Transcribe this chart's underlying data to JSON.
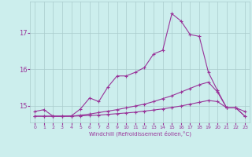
{
  "xlabel": "Windchill (Refroidissement éolien,°C)",
  "x": [
    0,
    1,
    2,
    3,
    4,
    5,
    6,
    7,
    8,
    9,
    10,
    11,
    12,
    13,
    14,
    15,
    16,
    17,
    18,
    19,
    20,
    21,
    22,
    23
  ],
  "line1": [
    14.85,
    14.9,
    14.72,
    14.72,
    14.73,
    14.92,
    15.22,
    15.12,
    15.52,
    15.82,
    15.82,
    15.92,
    16.05,
    16.42,
    16.52,
    17.52,
    17.32,
    16.95,
    16.9,
    15.92,
    15.42,
    14.95,
    14.95,
    14.85
  ],
  "line2": [
    14.72,
    14.72,
    14.72,
    14.72,
    14.72,
    14.75,
    14.78,
    14.82,
    14.86,
    14.9,
    14.95,
    15.0,
    15.05,
    15.12,
    15.2,
    15.28,
    15.38,
    15.48,
    15.58,
    15.65,
    15.38,
    14.95,
    14.95,
    14.72
  ],
  "line3": [
    14.72,
    14.72,
    14.72,
    14.72,
    14.72,
    14.73,
    14.74,
    14.75,
    14.77,
    14.79,
    14.81,
    14.83,
    14.86,
    14.89,
    14.92,
    14.96,
    15.0,
    15.05,
    15.1,
    15.15,
    15.12,
    14.95,
    14.95,
    14.72
  ],
  "line_color": "#993399",
  "bg_color": "#cceeed",
  "grid_color": "#aacccc",
  "ylim_min": 14.55,
  "ylim_max": 17.85,
  "yticks": [
    15,
    16,
    17
  ],
  "xticks": [
    0,
    1,
    2,
    3,
    4,
    5,
    6,
    7,
    8,
    9,
    10,
    11,
    12,
    13,
    14,
    15,
    16,
    17,
    18,
    19,
    20,
    21,
    22,
    23
  ]
}
